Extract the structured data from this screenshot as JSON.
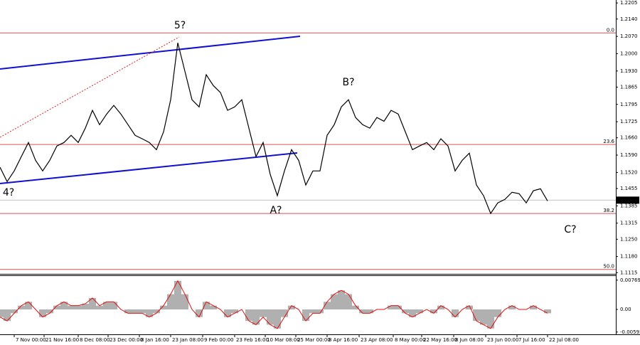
{
  "chart_data": {
    "type": "line",
    "categories": [
      null,
      null,
      null,
      null,
      null,
      null,
      null,
      null,
      null,
      null,
      null,
      null,
      null,
      null,
      null,
      null,
      null,
      null,
      null,
      null,
      null,
      null,
      null,
      null,
      null,
      null,
      null,
      null,
      null,
      null,
      null,
      null,
      null,
      null,
      null,
      null,
      null,
      null,
      null,
      null,
      null,
      null,
      null,
      null,
      null,
      null,
      null,
      null,
      null,
      null,
      null,
      null,
      null,
      null,
      null,
      null,
      null,
      null,
      null,
      null,
      null,
      null,
      null,
      null,
      null,
      null,
      null,
      null,
      null,
      null,
      null,
      null,
      null,
      null,
      null,
      null,
      null,
      null
    ],
    "values": [
      1.1541,
      1.1483,
      1.1526,
      1.1584,
      1.1641,
      1.1569,
      1.1526,
      1.1569,
      1.1627,
      1.1641,
      1.167,
      1.1641,
      1.1699,
      1.1771,
      1.1713,
      1.1756,
      1.1791,
      1.1756,
      1.1713,
      1.167,
      1.1656,
      1.1641,
      1.1612,
      1.1684,
      1.1814,
      1.2044,
      1.1929,
      1.1814,
      1.1785,
      1.1915,
      1.1871,
      1.1843,
      1.1771,
      1.1785,
      1.1814,
      1.1699,
      1.1584,
      1.1641,
      1.1512,
      1.1426,
      1.1526,
      1.1612,
      1.1569,
      1.1469,
      1.1526,
      1.1526,
      1.167,
      1.1713,
      1.1785,
      1.1814,
      1.1742,
      1.1713,
      1.1699,
      1.1742,
      1.1727,
      1.1771,
      1.1756,
      1.1684,
      1.1612,
      1.1627,
      1.1641,
      1.1612,
      1.1656,
      1.1627,
      1.1526,
      1.1569,
      1.1598,
      1.1469,
      1.1426,
      1.1354,
      1.1397,
      1.1411,
      1.144,
      1.1434,
      1.1397,
      1.1446,
      1.1454,
      1.1405
    ],
    "color": "#000000",
    "ylim": [
      1.111,
      1.2217
    ],
    "yticks": [
      1.2205,
      {
        "value": 1.214,
        "label": "1.2140"
      },
      {
        "value": 1.207,
        "label": "1.2070"
      },
      {
        "value": 1.2,
        "label": "1.2000"
      },
      {
        "value": 1.193,
        "label": "1.1930"
      },
      1.1865,
      1.1795,
      1.1725,
      {
        "value": 1.166,
        "label": "1.1660"
      },
      {
        "value": 1.159,
        "label": "1.1590"
      },
      {
        "value": 1.152,
        "label": "1.1520"
      },
      1.1455,
      1.1385,
      1.1315,
      {
        "value": 1.125,
        "label": "1.1250"
      },
      {
        "value": 1.118,
        "label": "1.1180"
      },
      1.1115
    ],
    "xticks": [
      {
        "value": 2,
        "label": "7 Nov 00:00"
      },
      {
        "value": 6.2,
        "label": "21 Nov 16:00"
      },
      {
        "value": 11,
        "label": "8 Dec 08:00"
      },
      {
        "value": 15.2,
        "label": "23 Dec 00:00"
      },
      {
        "value": 19.6,
        "label": "8 Jan 16:00"
      },
      {
        "value": 24,
        "label": "23 Jan 08:00"
      },
      {
        "value": 28.5,
        "label": "9 Feb 00:00"
      },
      {
        "value": 33,
        "label": "23 Feb 16:00"
      },
      {
        "value": 37.3,
        "label": "10 Mar 08:00"
      },
      {
        "value": 41.6,
        "label": "25 Mar 00:00"
      },
      {
        "value": 46,
        "label": "8 Apr 16:00"
      },
      {
        "value": 50.5,
        "label": "23 Apr 08:00"
      },
      {
        "value": 55.3,
        "label": "8 May 00:00"
      },
      {
        "value": 59.3,
        "label": "22 May 16:00"
      },
      {
        "value": 63.8,
        "label": "8 Jun 08:00"
      },
      {
        "value": 68.3,
        "label": "23 Jun 00:00"
      },
      {
        "value": 72.7,
        "label": "7 Jul 16:00"
      },
      {
        "value": 77,
        "label": "22 Jul 08:00"
      }
    ],
    "last_price": 1.1408,
    "levels": [
      {
        "value": 1.2084,
        "label": "0.0"
      },
      {
        "value": 1.1633,
        "label": "23.6"
      },
      {
        "value": 1.1354,
        "label": "38.2"
      },
      {
        "value": 1.1128,
        "label": "50.0"
      }
    ],
    "level_color": "#e05050",
    "annotations": [
      "5?",
      "B?",
      "4?",
      "A?",
      "C?"
    ],
    "annotation_color": "#e02020",
    "oscillator": {
      "bar_color": "#b0b0b0",
      "line_color": "#e01010",
      "values": [
        -0.002,
        -0.003,
        -0.001,
        0.001,
        0.002,
        0,
        -0.002,
        -0.001,
        0.001,
        0.002,
        0.001,
        0.001,
        0.0015,
        0.003,
        0.001,
        0.002,
        0.002,
        0,
        -0.001,
        -0.001,
        -0.001,
        -0.002,
        -0.001,
        0.001,
        0.004,
        0.0075,
        0.004,
        0,
        -0.002,
        0.002,
        0.001,
        0,
        -0.002,
        -0.001,
        0,
        -0.003,
        -0.004,
        -0.002,
        -0.004,
        -0.005,
        -0.002,
        0.001,
        0,
        -0.003,
        -0.001,
        -0.001,
        0.002,
        0.004,
        0.005,
        0.004,
        0.001,
        -0.001,
        -0.001,
        0,
        0,
        0.001,
        0.001,
        -0.001,
        -0.002,
        -0.001,
        0,
        -0.001,
        0.001,
        0,
        -0.002,
        0,
        0.001,
        -0.003,
        -0.004,
        -0.005,
        -0.002,
        0,
        0.001,
        0,
        0,
        0.001,
        0,
        -0.001
      ],
      "ylim": [
        -0.00653,
        0.00896
      ],
      "yticks": [
        0.00769,
        {
          "value": 0,
          "label": "0.00"
        },
        -0.00593
      ]
    }
  }
}
